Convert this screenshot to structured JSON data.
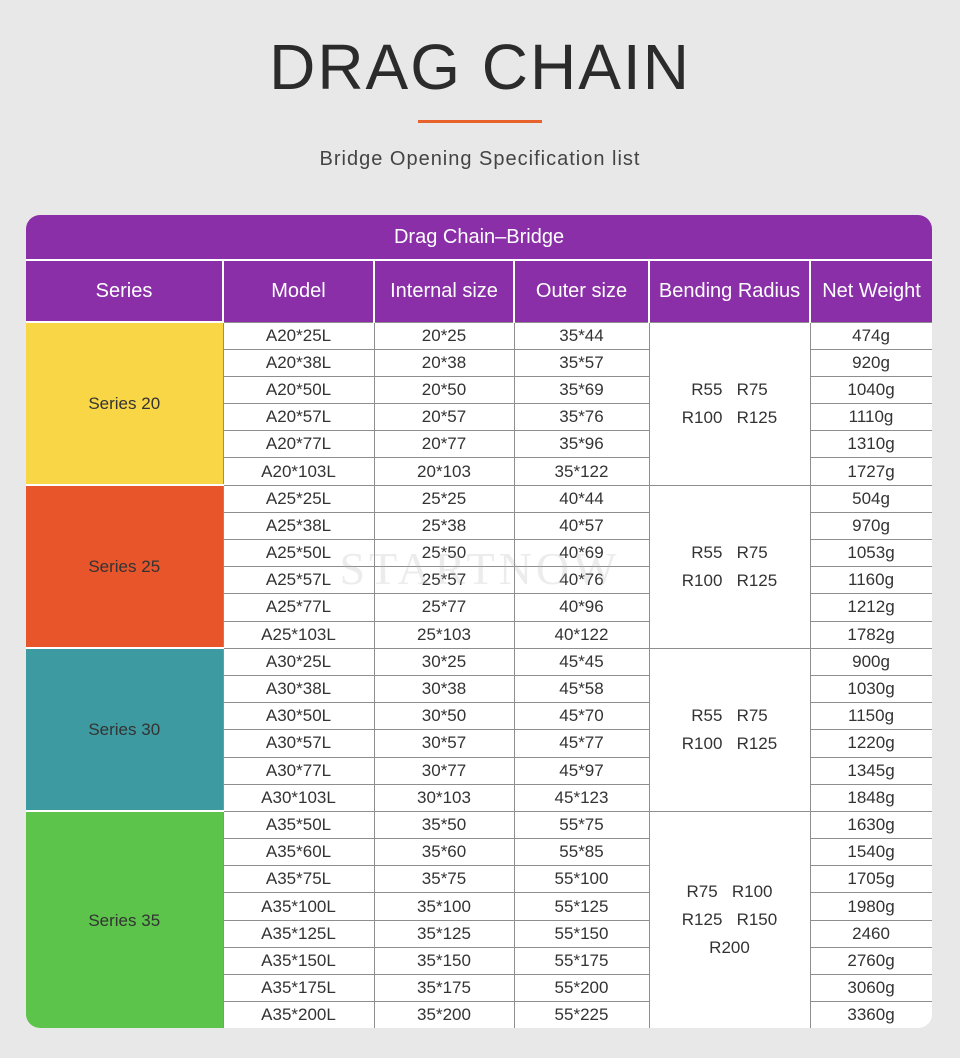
{
  "header": {
    "title": "DRAG CHAIN",
    "subtitle": "Bridge Opening Specification list"
  },
  "table": {
    "caption": "Drag Chain–Bridge",
    "columns": {
      "series": "Series",
      "model": "Model",
      "internal": "Internal size",
      "outer": "Outer size",
      "bending": "Bending Radius",
      "weight": "Net Weight"
    },
    "colors": {
      "header": "#8a2fa8",
      "series20": "#f8d645",
      "series25": "#e8552b",
      "series30": "#3d9aa0",
      "series35": "#5cc44b",
      "accent": "#e8622c"
    },
    "groups": [
      {
        "name": "Series 20",
        "radius": [
          "R55   R75",
          "R100   R125"
        ],
        "rows": [
          {
            "model": "A20*25L",
            "internal": "20*25",
            "outer": "35*44",
            "weight": "474g"
          },
          {
            "model": "A20*38L",
            "internal": "20*38",
            "outer": "35*57",
            "weight": "920g"
          },
          {
            "model": "A20*50L",
            "internal": "20*50",
            "outer": "35*69",
            "weight": "1040g"
          },
          {
            "model": "A20*57L",
            "internal": "20*57",
            "outer": "35*76",
            "weight": "1110g"
          },
          {
            "model": "A20*77L",
            "internal": "20*77",
            "outer": "35*96",
            "weight": "1310g"
          },
          {
            "model": "A20*103L",
            "internal": "20*103",
            "outer": "35*122",
            "weight": "1727g"
          }
        ]
      },
      {
        "name": "Series 25",
        "radius": [
          "R55   R75",
          "R100   R125"
        ],
        "rows": [
          {
            "model": "A25*25L",
            "internal": "25*25",
            "outer": "40*44",
            "weight": "504g"
          },
          {
            "model": "A25*38L",
            "internal": "25*38",
            "outer": "40*57",
            "weight": "970g"
          },
          {
            "model": "A25*50L",
            "internal": "25*50",
            "outer": "40*69",
            "weight": "1053g"
          },
          {
            "model": "A25*57L",
            "internal": "25*57",
            "outer": "40*76",
            "weight": "1160g"
          },
          {
            "model": "A25*77L",
            "internal": "25*77",
            "outer": "40*96",
            "weight": "1212g"
          },
          {
            "model": "A25*103L",
            "internal": "25*103",
            "outer": "40*122",
            "weight": "1782g"
          }
        ]
      },
      {
        "name": "Series 30",
        "radius": [
          "R55   R75",
          "R100   R125"
        ],
        "rows": [
          {
            "model": "A30*25L",
            "internal": "30*25",
            "outer": "45*45",
            "weight": "900g"
          },
          {
            "model": "A30*38L",
            "internal": "30*38",
            "outer": "45*58",
            "weight": "1030g"
          },
          {
            "model": "A30*50L",
            "internal": "30*50",
            "outer": "45*70",
            "weight": "1150g"
          },
          {
            "model": "A30*57L",
            "internal": "30*57",
            "outer": "45*77",
            "weight": "1220g"
          },
          {
            "model": "A30*77L",
            "internal": "30*77",
            "outer": "45*97",
            "weight": "1345g"
          },
          {
            "model": "A30*103L",
            "internal": "30*103",
            "outer": "45*123",
            "weight": "1848g"
          }
        ]
      },
      {
        "name": "Series 35",
        "radius": [
          "R75   R100",
          "R125   R150",
          "R200"
        ],
        "rows": [
          {
            "model": "A35*50L",
            "internal": "35*50",
            "outer": "55*75",
            "weight": "1630g"
          },
          {
            "model": "A35*60L",
            "internal": "35*60",
            "outer": "55*85",
            "weight": "1540g"
          },
          {
            "model": "A35*75L",
            "internal": "35*75",
            "outer": "55*100",
            "weight": "1705g"
          },
          {
            "model": "A35*100L",
            "internal": "35*100",
            "outer": "55*125",
            "weight": "1980g"
          },
          {
            "model": "A35*125L",
            "internal": "35*125",
            "outer": "55*150",
            "weight": "2460"
          },
          {
            "model": "A35*150L",
            "internal": "35*150",
            "outer": "55*175",
            "weight": "2760g"
          },
          {
            "model": "A35*175L",
            "internal": "35*175",
            "outer": "55*200",
            "weight": "3060g"
          },
          {
            "model": "A35*200L",
            "internal": "35*200",
            "outer": "55*225",
            "weight": "3360g"
          }
        ]
      }
    ]
  },
  "watermark": {
    "logo": "STARTNOW"
  }
}
